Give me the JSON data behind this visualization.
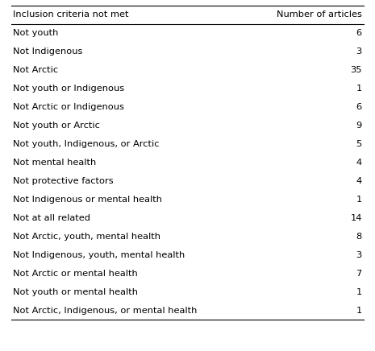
{
  "col1_header": "Inclusion criteria not met",
  "col2_header": "Number of articles",
  "rows": [
    [
      "Not youth",
      "6"
    ],
    [
      "Not Indigenous",
      "3"
    ],
    [
      "Not Arctic",
      "35"
    ],
    [
      "Not youth or Indigenous",
      "1"
    ],
    [
      "Not Arctic or Indigenous",
      "6"
    ],
    [
      "Not youth or Arctic",
      "9"
    ],
    [
      "Not youth, Indigenous, or Arctic",
      "5"
    ],
    [
      "Not mental health",
      "4"
    ],
    [
      "Not protective factors",
      "4"
    ],
    [
      "Not Indigenous or mental health",
      "1"
    ],
    [
      "Not at all related",
      "14"
    ],
    [
      "Not Arctic, youth, mental health",
      "8"
    ],
    [
      "Not Indigenous, youth, mental health",
      "3"
    ],
    [
      "Not Arctic or mental health",
      "7"
    ],
    [
      "Not youth or mental health",
      "1"
    ],
    [
      "Not Arctic, Indigenous, or mental health",
      "1"
    ]
  ],
  "background_color": "#ffffff",
  "text_color": "#000000",
  "font_size": 8.2,
  "header_font_size": 8.2,
  "line_color": "#000000",
  "fig_width": 4.65,
  "fig_height": 4.36,
  "dpi": 100
}
